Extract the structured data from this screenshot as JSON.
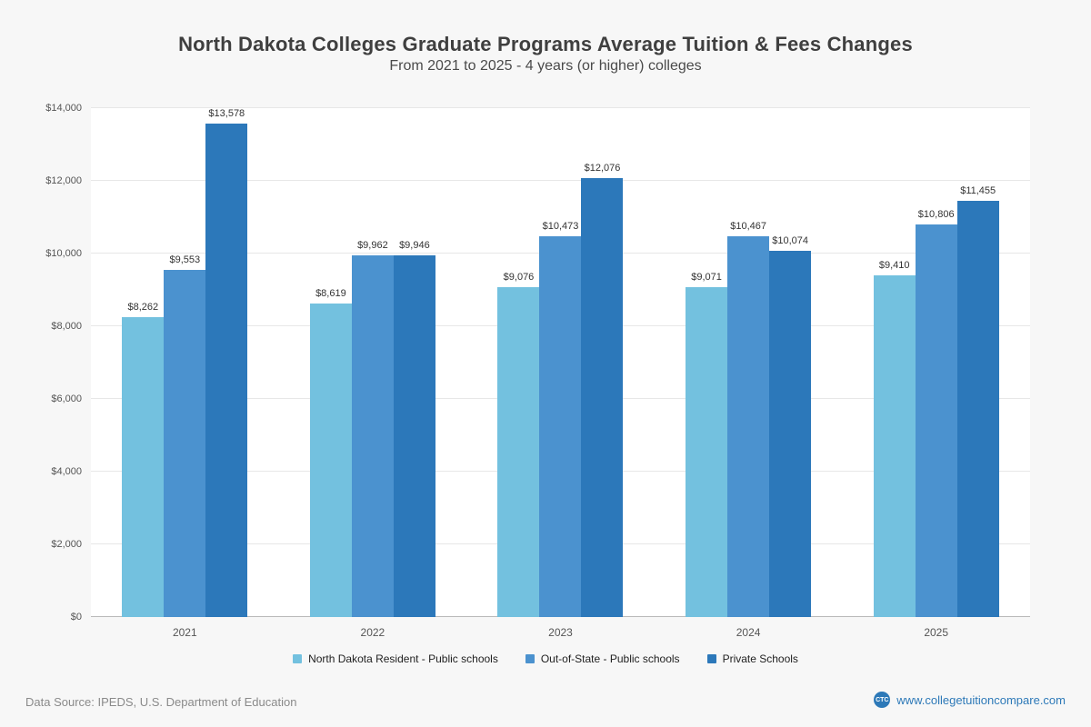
{
  "page": {
    "title": "North Dakota Colleges Graduate Programs Average Tuition & Fees Changes",
    "subtitle": "From 2021 to 2025 - 4 years (or higher) colleges"
  },
  "chart_data": {
    "type": "bar",
    "title": "North Dakota Colleges Graduate Programs Average Tuition & Fees Changes",
    "subtitle": "From 2021 to 2025 - 4 years (or higher) colleges",
    "categories": [
      "2021",
      "2022",
      "2023",
      "2024",
      "2025"
    ],
    "series": [
      {
        "name": "North Dakota Resident - Public schools",
        "color": "#73c1df",
        "values": [
          8262,
          8619,
          9076,
          9071,
          9410
        ],
        "labels": [
          "$8,262",
          "$8,619",
          "$9,076",
          "$9,071",
          "$9,410"
        ]
      },
      {
        "name": "Out-of-State - Public schools",
        "color": "#4b92cf",
        "values": [
          9553,
          9962,
          10473,
          10467,
          10806
        ],
        "labels": [
          "$9,553",
          "$9,962",
          "$10,473",
          "$10,467",
          "$10,806"
        ]
      },
      {
        "name": "Private Schools",
        "color": "#2c78ba",
        "values": [
          13578,
          9946,
          12076,
          10074,
          11455
        ],
        "labels": [
          "$13,578",
          "$9,946",
          "$12,076",
          "$10,074",
          "$11,455"
        ]
      }
    ],
    "xlabel": "",
    "ylabel": "",
    "ylim": [
      0,
      14000
    ],
    "y_ticks": [
      {
        "value": 0,
        "label": "$0"
      },
      {
        "value": 2000,
        "label": "$2,000"
      },
      {
        "value": 4000,
        "label": "$4,000"
      },
      {
        "value": 6000,
        "label": "$6,000"
      },
      {
        "value": 8000,
        "label": "$8,000"
      },
      {
        "value": 10000,
        "label": "$10,000"
      },
      {
        "value": 12000,
        "label": "$12,000"
      },
      {
        "value": 14000,
        "label": "$14,000"
      }
    ],
    "grid": true,
    "legend_position": "bottom"
  },
  "footer": {
    "source": "Data Source: IPEDS, U.S. Department of Education",
    "website": "www.collegetuitioncompare.com",
    "logo_text": "CTC"
  }
}
